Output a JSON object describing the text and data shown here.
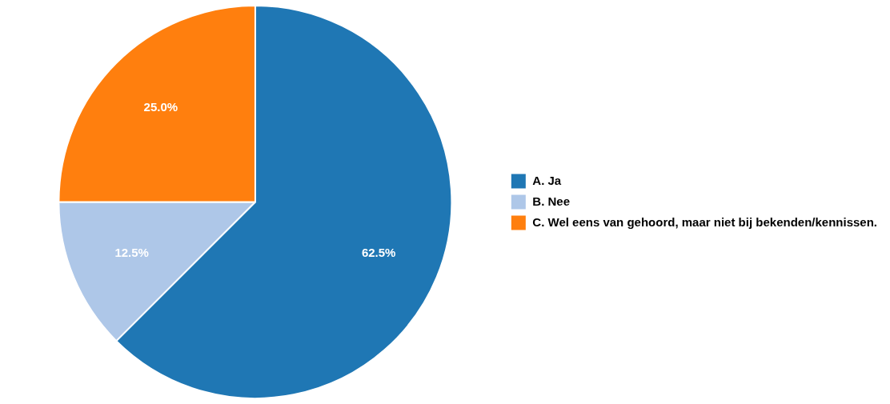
{
  "chart_data": {
    "type": "pie",
    "categories": [
      "A. Ja",
      "B. Nee",
      "C. Wel eens van gehoord, maar niet bij bekenden/kennissen."
    ],
    "values": [
      62.5,
      12.5,
      25.0
    ],
    "value_labels": [
      "62.5%",
      "12.5%",
      "25.0%"
    ],
    "colors": [
      "#1f77b4",
      "#aec7e8",
      "#ff7f0e"
    ],
    "legend": "right"
  }
}
